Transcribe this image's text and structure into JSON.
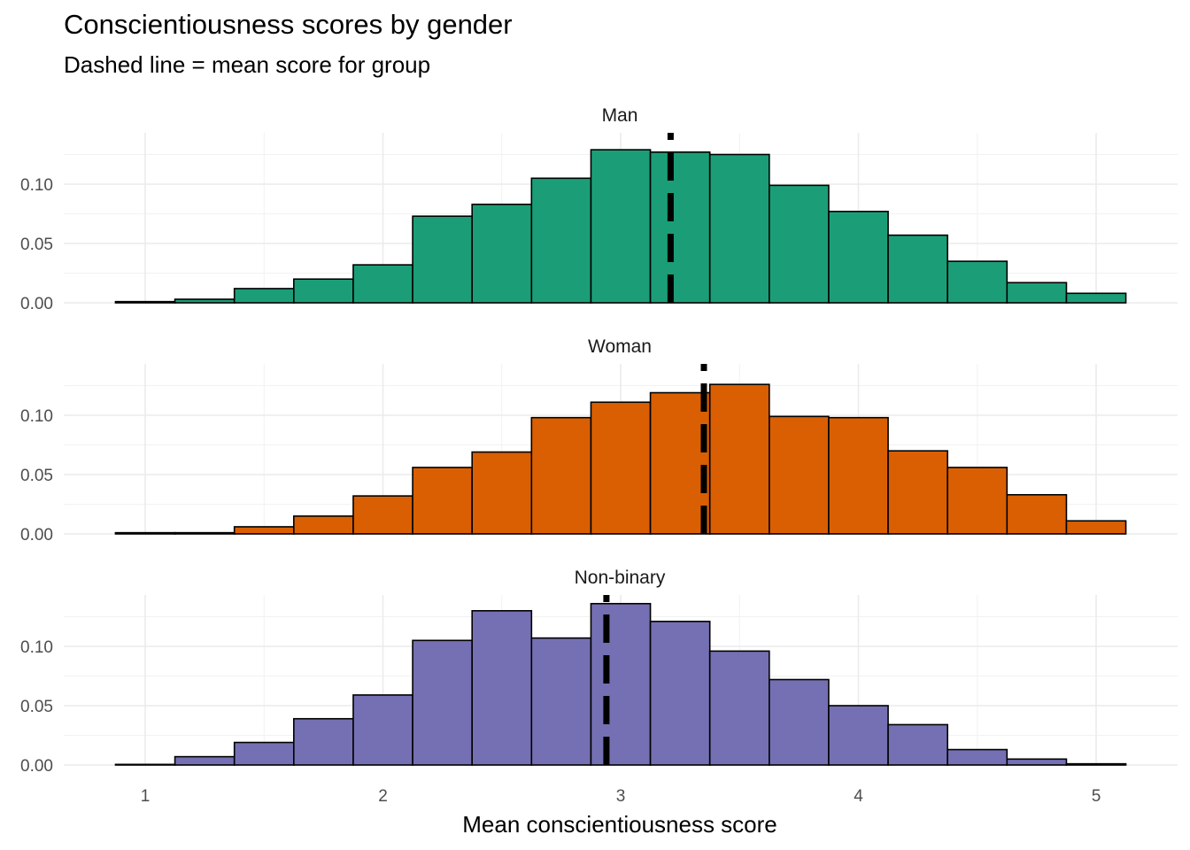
{
  "chart_data": {
    "type": "bar",
    "title": "Conscientiousness scores by gender",
    "subtitle": "Dashed line = mean score for group",
    "xlabel": "Mean conscientiousness score",
    "ylabel": "",
    "xlim": [
      0.7,
      5.35
    ],
    "ylim": [
      0,
      0.14
    ],
    "x_ticks": [
      1,
      2,
      3,
      4,
      5
    ],
    "y_ticks": [
      0.0,
      0.05,
      0.1
    ],
    "y_tick_labels": [
      "0.00",
      "0.05",
      "0.10"
    ],
    "bin_edges": [
      0.875,
      1.125,
      1.375,
      1.625,
      1.875,
      2.125,
      2.375,
      2.625,
      2.875,
      3.125,
      3.375,
      3.625,
      3.875,
      4.125,
      4.375,
      4.625,
      4.875,
      5.125
    ],
    "grid": true,
    "legend": "none",
    "panels": [
      {
        "label": "Man",
        "color": "#1b9e77",
        "mean": 3.21,
        "values": [
          0.001,
          0.003,
          0.012,
          0.02,
          0.032,
          0.073,
          0.083,
          0.105,
          0.129,
          0.127,
          0.125,
          0.099,
          0.077,
          0.057,
          0.035,
          0.017,
          0.008
        ]
      },
      {
        "label": "Woman",
        "color": "#d95f02",
        "mean": 3.35,
        "values": [
          0.001,
          0.001,
          0.006,
          0.015,
          0.032,
          0.056,
          0.069,
          0.098,
          0.111,
          0.119,
          0.126,
          0.099,
          0.098,
          0.07,
          0.056,
          0.033,
          0.011
        ]
      },
      {
        "label": "Non-binary",
        "color": "#7570b3",
        "mean": 2.94,
        "values": [
          0.0005,
          0.007,
          0.019,
          0.039,
          0.059,
          0.105,
          0.13,
          0.107,
          0.136,
          0.121,
          0.096,
          0.072,
          0.05,
          0.034,
          0.013,
          0.005,
          0.001
        ]
      }
    ]
  }
}
